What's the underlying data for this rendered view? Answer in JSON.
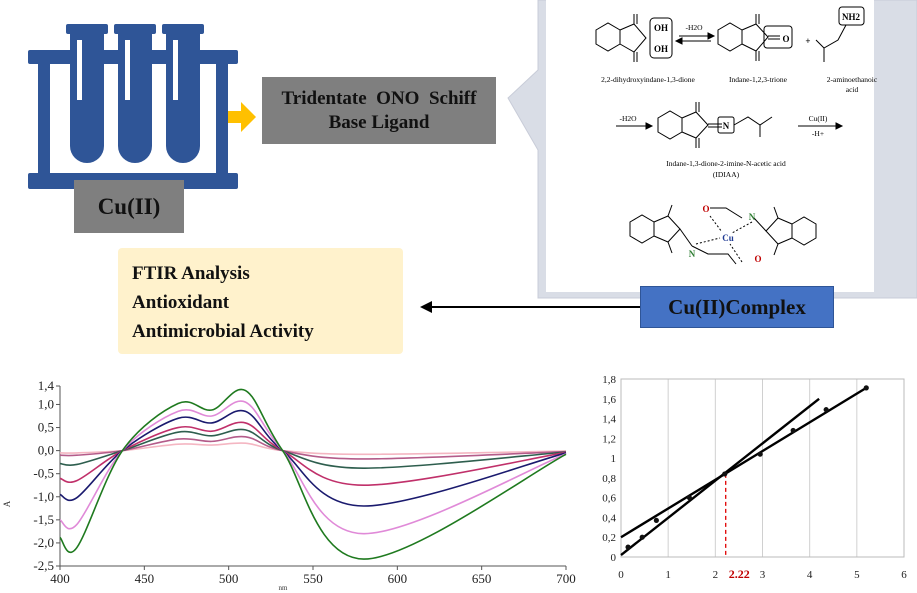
{
  "flow": {
    "metal_label": "Cu(II)",
    "ligand_label_line1": "Tridentate  ONO  Schiff",
    "ligand_label_line2": "Base Ligand",
    "complex_label": "Cu(II)Complex",
    "analysis_items": [
      "FTIR Analysis",
      "Antioxidant",
      "Antimicrobial Activity"
    ]
  },
  "scheme": {
    "reagent1": "2,2-dihydroxyindane-1,3-dione",
    "reagent2": "Indane-1,2,3-trione",
    "reagent3_line1": "2-aminoethanoic",
    "reagent3_line2": "acid",
    "step1": "-H2O",
    "step2": "-H2O",
    "product_line1": "Indane-1,3-dione-2-imine-N-acetic acid",
    "product_line2": "(IDIAA)",
    "step3_top": "Cu(II)",
    "step3_bottom": "-H+",
    "atom_oh": "OH",
    "atom_o": "O",
    "atom_n": "N",
    "atom_nh2": "NH2",
    "atom_cu": "Cu",
    "plus": "+"
  },
  "colors": {
    "test_tube": "#2f5597",
    "arrow": "#ffc000",
    "ligand_box": "#7f7f7f",
    "complex_box": "#4472c4",
    "analysis_box": "#fff2cc",
    "scheme_panel": "#d9dde6",
    "dashed_marker": "#e00000"
  },
  "chart_data": [
    {
      "type": "line",
      "title": "",
      "xlabel": "nm",
      "ylabel": "A",
      "xlim": [
        400,
        700
      ],
      "ylim": [
        -2.5,
        1.4
      ],
      "xticks": [
        "400",
        "450",
        "500",
        "550",
        "600",
        "650",
        "700"
      ],
      "yticks": [
        "1,4",
        "1,0",
        "0,5",
        "0,0",
        "-0,5",
        "-1,0",
        "-1,5",
        "-2,0",
        "-2,5"
      ],
      "isosbestic_points": [
        437,
        532
      ],
      "series": [
        {
          "color": "#f4b6c2",
          "values": [
            [
              400,
              -0.05
            ],
            [
              410,
              -0.05
            ],
            [
              437,
              0.0
            ],
            [
              470,
              0.14
            ],
            [
              490,
              0.12
            ],
            [
              510,
              0.16
            ],
            [
              532,
              0.0
            ],
            [
              580,
              -0.08
            ],
            [
              700,
              -0.01
            ]
          ]
        },
        {
          "color": "#b45c8a",
          "values": [
            [
              400,
              -0.1
            ],
            [
              410,
              -0.1
            ],
            [
              437,
              0.0
            ],
            [
              470,
              0.25
            ],
            [
              490,
              0.2
            ],
            [
              510,
              0.3
            ],
            [
              532,
              0.0
            ],
            [
              580,
              -0.18
            ],
            [
              700,
              -0.02
            ]
          ]
        },
        {
          "color": "#2e5e4e",
          "values": [
            [
              400,
              -0.28
            ],
            [
              410,
              -0.3
            ],
            [
              437,
              0.0
            ],
            [
              470,
              0.4
            ],
            [
              490,
              0.32
            ],
            [
              510,
              0.45
            ],
            [
              532,
              0.0
            ],
            [
              580,
              -0.38
            ],
            [
              700,
              -0.03
            ]
          ]
        },
        {
          "color": "#c0306a",
          "values": [
            [
              400,
              -0.6
            ],
            [
              410,
              -0.65
            ],
            [
              437,
              0.0
            ],
            [
              470,
              0.5
            ],
            [
              490,
              0.42
            ],
            [
              510,
              0.6
            ],
            [
              532,
              0.0
            ],
            [
              580,
              -0.75
            ],
            [
              700,
              -0.04
            ]
          ]
        },
        {
          "color": "#1a1a6e",
          "values": [
            [
              400,
              -0.95
            ],
            [
              410,
              -1.02
            ],
            [
              437,
              0.0
            ],
            [
              470,
              0.7
            ],
            [
              490,
              0.6
            ],
            [
              510,
              0.85
            ],
            [
              532,
              0.0
            ],
            [
              580,
              -1.2
            ],
            [
              700,
              -0.05
            ]
          ]
        },
        {
          "color": "#e08ad8",
          "values": [
            [
              400,
              -1.5
            ],
            [
              410,
              -1.6
            ],
            [
              437,
              0.0
            ],
            [
              470,
              0.85
            ],
            [
              490,
              0.75
            ],
            [
              510,
              1.05
            ],
            [
              532,
              0.0
            ],
            [
              580,
              -1.8
            ],
            [
              700,
              -0.07
            ]
          ]
        },
        {
          "color": "#1f7a1f",
          "values": [
            [
              400,
              -1.88
            ],
            [
              410,
              -2.1
            ],
            [
              437,
              0.0
            ],
            [
              470,
              1.02
            ],
            [
              490,
              0.88
            ],
            [
              510,
              1.3
            ],
            [
              532,
              0.0
            ],
            [
              580,
              -2.35
            ],
            [
              700,
              -0.08
            ]
          ]
        }
      ]
    },
    {
      "type": "scatter",
      "title": "",
      "xlabel": "",
      "ylabel": "",
      "xlim": [
        0,
        6
      ],
      "ylim": [
        0,
        1.8
      ],
      "xticks": [
        "0",
        "1",
        "2",
        "3",
        "4",
        "5",
        "6"
      ],
      "yticks": [
        "1,8",
        "1,6",
        "1,4",
        "1,2",
        "1",
        "0,8",
        "0,6",
        "0,4",
        "0,2",
        "0"
      ],
      "grid": "vertical",
      "points": [
        [
          0.15,
          0.1
        ],
        [
          0.45,
          0.2
        ],
        [
          0.75,
          0.37
        ],
        [
          1.45,
          0.6
        ],
        [
          2.2,
          0.84
        ],
        [
          2.95,
          1.04
        ],
        [
          3.65,
          1.28
        ],
        [
          4.35,
          1.49
        ],
        [
          5.2,
          1.71
        ]
      ],
      "fit_lines": [
        {
          "from": [
            0.0,
            0.02
          ],
          "to": [
            4.2,
            1.6
          ]
        },
        {
          "from": [
            0.0,
            0.2
          ],
          "to": [
            5.2,
            1.71
          ]
        }
      ],
      "intersection_x": 2.22,
      "intersection_label": "2.22"
    }
  ]
}
